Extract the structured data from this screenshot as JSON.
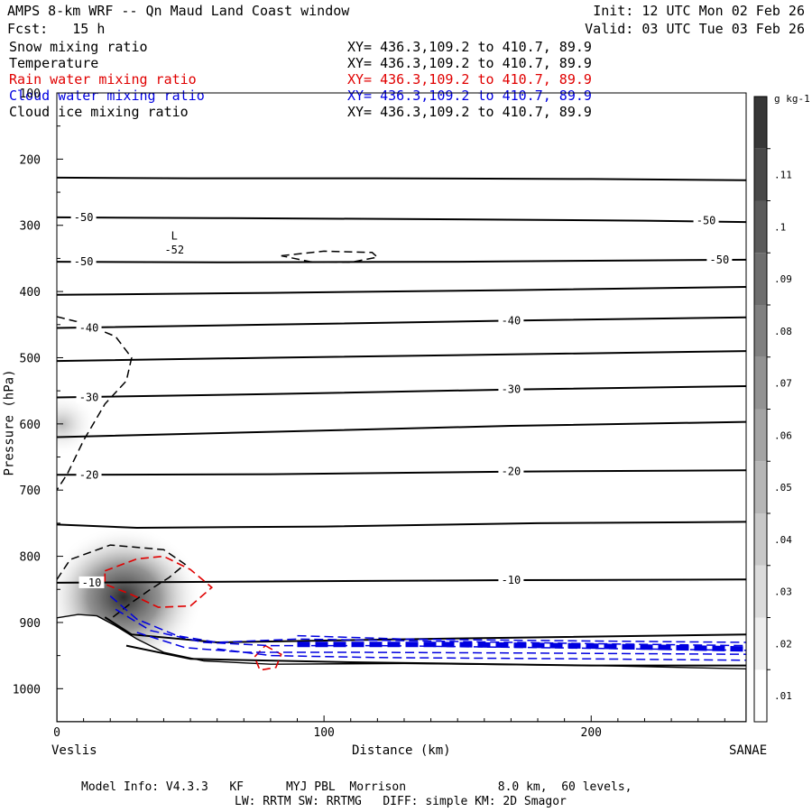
{
  "header": {
    "title": "AMPS 8-km WRF -- Qn Maud Land Coast window",
    "init": "Init: 12 UTC Mon 02 Feb 26",
    "forecast": "Fcst:   15 h",
    "valid": "Valid: 03 UTC Tue 03 Feb 26"
  },
  "legend": [
    {
      "name": "Snow mixing ratio",
      "xy": "XY= 436.3,109.2 to 410.7, 89.9",
      "color": "#000000"
    },
    {
      "name": "Temperature",
      "xy": "XY= 436.3,109.2 to 410.7, 89.9",
      "color": "#000000"
    },
    {
      "name": "Rain water mixing ratio",
      "xy": "XY= 436.3,109.2 to 410.7, 89.9",
      "color": "#e00000"
    },
    {
      "name": "Cloud water mixing ratio",
      "xy": "XY= 436.3,109.2 to 410.7, 89.9",
      "color": "#0000e0"
    },
    {
      "name": "Cloud ice mixing ratio",
      "xy": "XY= 436.3,109.2 to 410.7, 89.9",
      "color": "#000000"
    }
  ],
  "footer": {
    "line1": "Model Info: V4.3.3   KF      MYJ PBL  Morrison             8.0 km,  60 levels,",
    "line2": "LW: RRTM SW: RRTMG   DIFF: simple KM: 2D Smagor"
  },
  "chart_data": {
    "type": "cross-section",
    "xlabel": "Distance (km)",
    "ylabel": "Pressure (hPa)",
    "xlim": [
      0,
      258
    ],
    "ylim": [
      1050,
      100
    ],
    "x_ticks": [
      0,
      100,
      200
    ],
    "y_ticks": [
      100,
      200,
      300,
      400,
      500,
      600,
      700,
      800,
      900,
      1000
    ],
    "left_endpoint": "Veslis",
    "right_endpoint": "SANAE",
    "colorbar": {
      "unit": "g kg-1",
      "levels": [
        0.01,
        0.02,
        0.03,
        0.04,
        0.05,
        0.06,
        0.07,
        0.08,
        0.09,
        0.1,
        0.11
      ],
      "labels": [
        ".01",
        ".02",
        ".03",
        ".04",
        ".05",
        ".06",
        ".07",
        ".08",
        ".09",
        ".1",
        ".11"
      ]
    },
    "temperature_lines": [
      {
        "pts": [
          [
            0,
            228
          ],
          [
            50,
            229
          ],
          [
            120,
            229
          ],
          [
            200,
            230
          ],
          [
            258,
            232
          ]
        ]
      },
      {
        "pts": [
          [
            0,
            288
          ],
          [
            60,
            289
          ],
          [
            150,
            291
          ],
          [
            220,
            293
          ],
          [
            258,
            295
          ]
        ]
      },
      {
        "pts": [
          [
            0,
            355
          ],
          [
            60,
            356
          ],
          [
            150,
            355
          ],
          [
            220,
            353
          ],
          [
            258,
            352
          ]
        ]
      },
      {
        "pts": [
          [
            0,
            405
          ],
          [
            80,
            402
          ],
          [
            170,
            398
          ],
          [
            258,
            393
          ]
        ]
      },
      {
        "pts": [
          [
            0,
            455
          ],
          [
            80,
            450
          ],
          [
            170,
            444
          ],
          [
            258,
            439
          ]
        ]
      },
      {
        "pts": [
          [
            0,
            505
          ],
          [
            80,
            500
          ],
          [
            170,
            495
          ],
          [
            258,
            490
          ]
        ]
      },
      {
        "pts": [
          [
            0,
            560
          ],
          [
            80,
            555
          ],
          [
            170,
            548
          ],
          [
            258,
            543
          ]
        ]
      },
      {
        "pts": [
          [
            0,
            620
          ],
          [
            80,
            612
          ],
          [
            170,
            603
          ],
          [
            258,
            597
          ]
        ]
      },
      {
        "pts": [
          [
            0,
            677
          ],
          [
            80,
            676
          ],
          [
            170,
            672
          ],
          [
            258,
            670
          ]
        ]
      },
      {
        "pts": [
          [
            0,
            752
          ],
          [
            30,
            757
          ],
          [
            100,
            755
          ],
          [
            180,
            750
          ],
          [
            258,
            748
          ]
        ]
      },
      {
        "pts": [
          [
            0,
            840
          ],
          [
            80,
            838
          ],
          [
            170,
            836
          ],
          [
            258,
            835
          ]
        ]
      },
      {
        "pts": [
          [
            18,
            892
          ],
          [
            28,
            918
          ],
          [
            60,
            930
          ],
          [
            150,
            924
          ],
          [
            258,
            918
          ]
        ]
      },
      {
        "pts": [
          [
            26,
            935
          ],
          [
            50,
            955
          ],
          [
            110,
            960
          ],
          [
            200,
            965
          ],
          [
            258,
            965
          ]
        ]
      }
    ],
    "temperature_labels": [
      {
        "text": "-50",
        "x": 10,
        "p": 288
      },
      {
        "text": "-50",
        "x": 243,
        "p": 293
      },
      {
        "text": "-50",
        "x": 10,
        "p": 355
      },
      {
        "text": "-50",
        "x": 248,
        "p": 352
      },
      {
        "text": "-40",
        "x": 12,
        "p": 455
      },
      {
        "text": "-40",
        "x": 170,
        "p": 444
      },
      {
        "text": "-30",
        "x": 12,
        "p": 560
      },
      {
        "text": "-30",
        "x": 170,
        "p": 548
      },
      {
        "text": "-20",
        "x": 12,
        "p": 677
      },
      {
        "text": "-20",
        "x": 170,
        "p": 672
      },
      {
        "text": "-10",
        "x": 13,
        "p": 840
      },
      {
        "text": "-10",
        "x": 170,
        "p": 836
      },
      {
        "text": "L",
        "x": 44,
        "p": 316
      },
      {
        "text": "-52",
        "x": 44,
        "p": 337
      }
    ],
    "terrain": [
      [
        0,
        893
      ],
      [
        8,
        888
      ],
      [
        15,
        890
      ],
      [
        22,
        905
      ],
      [
        30,
        925
      ],
      [
        40,
        945
      ],
      [
        55,
        958
      ],
      [
        80,
        963
      ],
      [
        130,
        962
      ],
      [
        200,
        965
      ],
      [
        258,
        970
      ],
      [
        258,
        1050
      ],
      [
        0,
        1050
      ]
    ],
    "snow_shading": [
      {
        "x": 2,
        "p": 600,
        "level": 0.03
      },
      {
        "x": 25,
        "p": 862,
        "level": 0.1
      }
    ],
    "cloud_ice_contours": [
      {
        "pts": [
          [
            0,
            438
          ],
          [
            10,
            448
          ],
          [
            22,
            468
          ],
          [
            28,
            500
          ],
          [
            26,
            535
          ],
          [
            18,
            570
          ],
          [
            10,
            625
          ],
          [
            4,
            675
          ],
          [
            0,
            700
          ]
        ]
      },
      {
        "pts": [
          [
            0,
            835
          ],
          [
            5,
            805
          ],
          [
            20,
            783
          ],
          [
            40,
            790
          ],
          [
            48,
            812
          ],
          [
            42,
            832
          ],
          [
            35,
            850
          ],
          [
            28,
            870
          ],
          [
            20,
            895
          ]
        ]
      },
      {
        "pts": [
          [
            84,
            346
          ],
          [
            100,
            339
          ],
          [
            118,
            341
          ],
          [
            120,
            348
          ],
          [
            110,
            356
          ],
          [
            95,
            355
          ],
          [
            84,
            346
          ]
        ]
      }
    ],
    "rain_contours": [
      {
        "pts": [
          [
            18,
            822
          ],
          [
            30,
            804
          ],
          [
            40,
            800
          ],
          [
            50,
            820
          ],
          [
            58,
            847
          ],
          [
            50,
            875
          ],
          [
            38,
            877
          ],
          [
            28,
            858
          ],
          [
            18,
            842
          ],
          [
            18,
            822
          ]
        ]
      },
      {
        "pts": [
          [
            78,
            935
          ],
          [
            84,
            948
          ],
          [
            82,
            968
          ],
          [
            76,
            972
          ],
          [
            74,
            952
          ],
          [
            78,
            935
          ]
        ]
      }
    ],
    "cloud_water_contours": [
      {
        "pts": [
          [
            20,
            860
          ],
          [
            30,
            895
          ],
          [
            45,
            920
          ],
          [
            60,
            930
          ],
          [
            90,
            925
          ],
          [
            140,
            928
          ],
          [
            200,
            932
          ],
          [
            258,
            935
          ]
        ]
      },
      {
        "pts": [
          [
            22,
            880
          ],
          [
            35,
            912
          ],
          [
            55,
            930
          ],
          [
            80,
            935
          ],
          [
            120,
            935
          ],
          [
            180,
            938
          ],
          [
            258,
            942
          ]
        ]
      },
      {
        "pts": [
          [
            30,
            915
          ],
          [
            48,
            938
          ],
          [
            70,
            945
          ],
          [
            110,
            945
          ],
          [
            170,
            946
          ],
          [
            258,
            948
          ]
        ]
      },
      {
        "pts": [
          [
            60,
            940
          ],
          [
            80,
            950
          ],
          [
            120,
            953
          ],
          [
            200,
            955
          ],
          [
            258,
            957
          ]
        ]
      },
      {
        "pts": [
          [
            90,
            920
          ],
          [
            130,
            925
          ],
          [
            200,
            928
          ],
          [
            258,
            930
          ]
        ]
      }
    ],
    "cloud_water_core": [
      [
        90,
        933
      ],
      [
        140,
        933
      ],
      [
        190,
        935
      ],
      [
        230,
        938
      ],
      [
        258,
        940
      ]
    ]
  }
}
